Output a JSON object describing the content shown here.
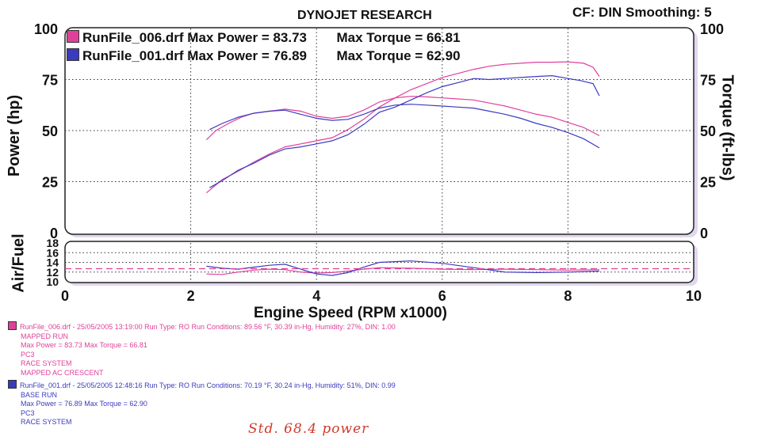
{
  "header": {
    "title": "DYNOJET RESEARCH",
    "settings": "CF: DIN  Smoothing: 5"
  },
  "legend": [
    {
      "file": "RunFile_006.drf",
      "max_power_label": "Max Power = 83.73",
      "max_torque_label": "Max Torque = 66.81",
      "color": "#e0409a"
    },
    {
      "file": "RunFile_001.drf",
      "max_power_label": "Max Power = 76.89",
      "max_torque_label": "Max Torque = 62.90",
      "color": "#3b3bbf"
    }
  ],
  "notes": [
    {
      "color": "#e0409a",
      "lines": [
        "RunFile_006.drf - 25/05/2005 13:19:00  Run Type: RO  Run Conditions: 89.56 °F, 30.39 in-Hg,  Humidity:  27%, DIN: 1.00",
        "MAPPED RUN",
        "Max Power = 83.73  Max Torque = 66.81",
        "PC3",
        "RACE SYSTEM",
        "MAPPED AC CRESCENT"
      ]
    },
    {
      "color": "#3b3bbf",
      "lines": [
        "RunFile_001.drf - 25/05/2005 12:48:16  Run Type: RO  Run Conditions: 70.19 °F, 30.24 in-Hg,  Humidity:  51%, DIN: 0.99",
        "BASE RUN",
        "Max Power = 76.89  Max Torque = 62.90",
        "PC3",
        "RACE SYSTEM"
      ]
    }
  ],
  "handwritten": "Std.   68.4 power",
  "chart_data": [
    {
      "type": "line",
      "xlabel": "Engine Speed (RPM x1000)",
      "ylabel": "Power (hp)",
      "y2label": "Torque (ft-lbs)",
      "xlim": [
        0,
        10
      ],
      "ylim": [
        0,
        100
      ],
      "xticks": [
        "0",
        "2",
        "4",
        "6",
        "8",
        "10"
      ],
      "yticks": [
        "0",
        "25",
        "50",
        "75",
        "100"
      ],
      "grid": true,
      "series": [
        {
          "name": "RunFile_006.drf",
          "measure": "power",
          "color": "#e0409a",
          "x": [
            2.25,
            2.5,
            2.75,
            3.0,
            3.25,
            3.5,
            3.75,
            4.0,
            4.25,
            4.5,
            4.75,
            5.0,
            5.25,
            5.5,
            5.75,
            6.0,
            6.25,
            6.5,
            6.75,
            7.0,
            7.25,
            7.5,
            7.75,
            8.0,
            8.25,
            8.4,
            8.5
          ],
          "y": [
            19.5,
            26,
            30,
            34.5,
            38.5,
            42,
            43.5,
            45,
            46.5,
            50.5,
            55.5,
            61.5,
            66,
            70,
            73,
            76,
            78,
            80,
            81.5,
            82.5,
            83,
            83.5,
            83.5,
            83.7,
            83,
            81,
            76.5
          ]
        },
        {
          "name": "RunFile_006.drf",
          "measure": "torque",
          "color": "#e0409a",
          "x": [
            2.25,
            2.4,
            2.6,
            2.8,
            3.0,
            3.25,
            3.5,
            3.75,
            4.0,
            4.25,
            4.5,
            4.75,
            5.0,
            5.25,
            5.5,
            5.75,
            6.0,
            6.25,
            6.5,
            6.75,
            7.0,
            7.25,
            7.5,
            7.75,
            8.0,
            8.25,
            8.5
          ],
          "y": [
            45.5,
            50,
            53.5,
            56.5,
            58.5,
            59.5,
            60.5,
            59.5,
            57,
            56,
            57,
            60,
            64,
            66,
            66.8,
            66.5,
            66,
            65.5,
            65,
            63.5,
            62,
            60,
            58,
            56.5,
            54,
            51.5,
            47.5
          ]
        },
        {
          "name": "RunFile_001.drf",
          "measure": "power",
          "color": "#3b3bbf",
          "x": [
            2.3,
            2.5,
            2.75,
            3.0,
            3.25,
            3.5,
            3.75,
            4.0,
            4.25,
            4.5,
            4.75,
            5.0,
            5.25,
            5.5,
            5.75,
            6.0,
            6.25,
            6.5,
            6.75,
            7.0,
            7.25,
            7.5,
            7.75,
            8.0,
            8.2,
            8.4,
            8.5
          ],
          "y": [
            22,
            25.5,
            30.5,
            34,
            38,
            41,
            42,
            43.5,
            45,
            48,
            53,
            59,
            61.5,
            65,
            68.5,
            71.5,
            73.5,
            75.5,
            75,
            75.5,
            76,
            76.5,
            76.9,
            75.5,
            74.5,
            73,
            67
          ]
        },
        {
          "name": "RunFile_001.drf",
          "measure": "torque",
          "color": "#3b3bbf",
          "x": [
            2.3,
            2.5,
            2.75,
            3.0,
            3.25,
            3.5,
            3.75,
            4.0,
            4.25,
            4.5,
            4.75,
            5.0,
            5.25,
            5.5,
            5.75,
            6.0,
            6.25,
            6.5,
            6.75,
            7.0,
            7.25,
            7.5,
            7.75,
            8.0,
            8.25,
            8.5
          ],
          "y": [
            50.5,
            53.5,
            56.5,
            58.5,
            59.5,
            60,
            58,
            56,
            55,
            55.5,
            58,
            61,
            62.5,
            62.9,
            62.5,
            62,
            61.5,
            61,
            59.5,
            58,
            56,
            53.5,
            51.5,
            49,
            46,
            41.5
          ]
        }
      ]
    },
    {
      "type": "line",
      "ylabel": "Air/Fuel",
      "xlim": [
        0,
        10
      ],
      "ylim": [
        10,
        18
      ],
      "yticks": [
        "10",
        "12",
        "14",
        "16",
        "18"
      ],
      "grid": true,
      "series": [
        {
          "name": "RunFile_006.drf",
          "color": "#e0409a",
          "x": [
            2.25,
            2.5,
            2.75,
            3.0,
            3.25,
            3.5,
            3.75,
            4.0,
            4.25,
            4.5,
            4.75,
            5.0,
            5.5,
            6.0,
            6.5,
            7.0,
            7.5,
            8.0,
            8.5
          ],
          "y": [
            11.6,
            11.5,
            12,
            12.4,
            12.6,
            12.5,
            12,
            11.8,
            11.9,
            12.2,
            12.6,
            12.9,
            12.8,
            12.6,
            12.5,
            12.6,
            12.5,
            12.4,
            12.5
          ]
        },
        {
          "name": "RunFile_001.drf",
          "color": "#3b3bbf",
          "x": [
            2.25,
            2.5,
            2.75,
            3.0,
            3.25,
            3.5,
            3.75,
            4.0,
            4.25,
            4.5,
            4.75,
            5.0,
            5.5,
            6.0,
            6.5,
            7.0,
            7.5,
            8.0,
            8.5
          ],
          "y": [
            13.2,
            12.8,
            12.6,
            13,
            13.4,
            13.6,
            12.6,
            11.6,
            11.3,
            11.9,
            13,
            14,
            14.3,
            13.8,
            12.9,
            12,
            11.9,
            12,
            12.2
          ]
        },
        {
          "name": "target",
          "color": "#e0409a",
          "dashed": true,
          "x": [
            0,
            10
          ],
          "y": [
            12.7,
            12.7
          ]
        }
      ]
    }
  ]
}
